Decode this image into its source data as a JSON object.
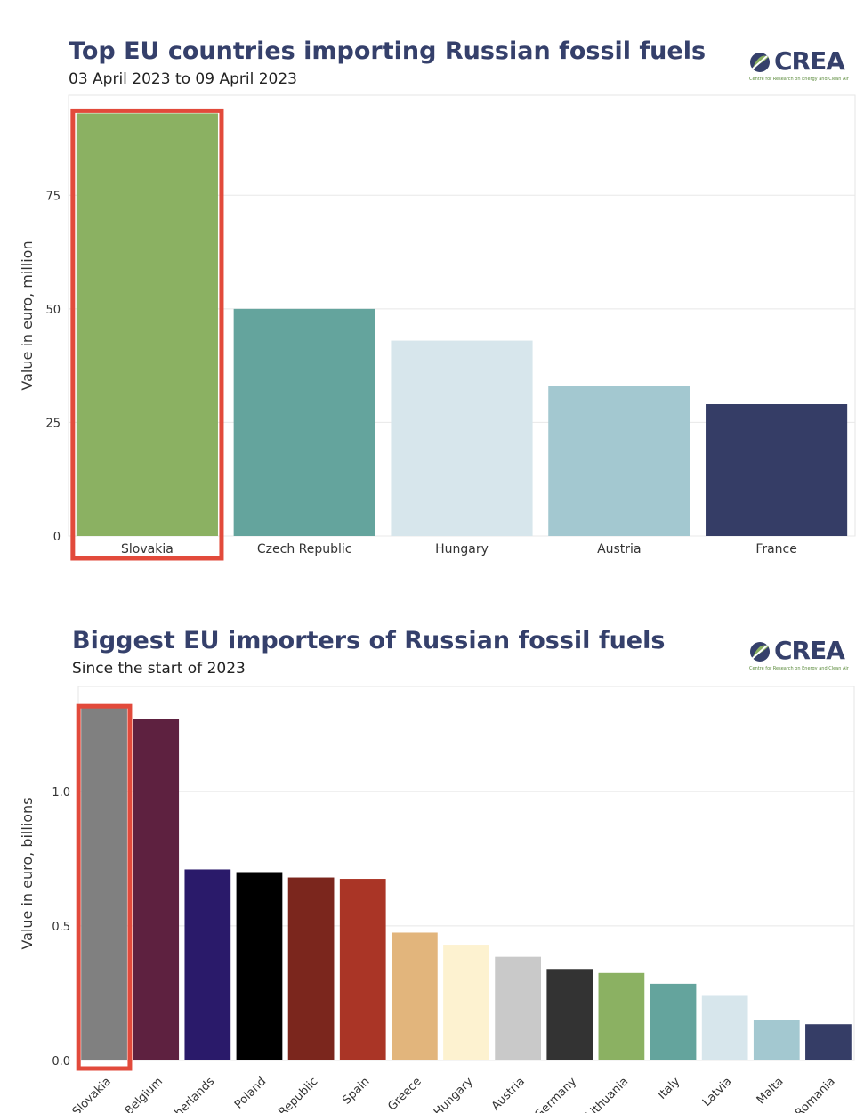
{
  "chart1": {
    "title": "Top EU countries importing Russian fossil fuels",
    "subtitle": "03 April 2023 to 09 April 2023",
    "logo": {
      "word": "CREA",
      "sub": "Centre for Research on Energy and Clean Air"
    },
    "highlight_color": "#e24a3b",
    "chart_data": {
      "type": "bar",
      "title": "Top EU countries importing Russian fossil fuels",
      "subtitle": "03 April 2023 to 09 April 2023",
      "xlabel": "",
      "ylabel": "Value in euro, million",
      "ylim": [
        0,
        97
      ],
      "yticks": [
        0,
        25,
        50,
        75
      ],
      "ytick_labels": [
        "0",
        "25",
        "50",
        "75"
      ],
      "categories": [
        "Slovakia",
        "Czech Republic",
        "Hungary",
        "Austria",
        "France"
      ],
      "values": [
        93,
        50,
        43,
        33,
        29
      ],
      "colors": [
        "#8bb162",
        "#64a49d",
        "#d7e6ec",
        "#a3c8d0",
        "#353d66"
      ],
      "highlighted": "Slovakia",
      "grid": true
    }
  },
  "chart2": {
    "title": "Biggest EU importers of Russian fossil fuels",
    "subtitle": "Since the start of 2023",
    "logo": {
      "word": "CREA",
      "sub": "Centre for Research on Energy and Clean Air"
    },
    "highlight_color": "#e24a3b",
    "chart_data": {
      "type": "bar",
      "title": "Biggest EU importers of Russian fossil fuels",
      "subtitle": "Since the start of 2023",
      "xlabel": "",
      "ylabel": "Value in euro, billions",
      "ylim": [
        0,
        1.39
      ],
      "yticks": [
        0,
        0.5,
        1.0
      ],
      "ytick_labels": [
        "0.0",
        "0.5",
        "1.0"
      ],
      "categories": [
        "Slovakia",
        "Belgium",
        "Netherlands",
        "Poland",
        "Czech Republic",
        "Spain",
        "Greece",
        "Hungary",
        "Austria",
        "Germany",
        "Lithuania",
        "Italy",
        "Latvia",
        "Malta",
        "Romania"
      ],
      "tick_labels": [
        "Slovakia",
        "Belgium",
        "therlands",
        "Poland",
        "Republic",
        "Spain",
        "Greece",
        "Hungary",
        "Austria",
        "Germany",
        "Lithuania",
        "Italy",
        "Latvia",
        "Malta",
        "Romania"
      ],
      "values": [
        1.31,
        1.27,
        0.71,
        0.7,
        0.68,
        0.675,
        0.475,
        0.43,
        0.385,
        0.34,
        0.325,
        0.285,
        0.24,
        0.15,
        0.135
      ],
      "colors": [
        "#808080",
        "#5e2140",
        "#2a1a6a",
        "#000000",
        "#7b261d",
        "#aa3526",
        "#e2b57c",
        "#fdf2d0",
        "#c9c9c9",
        "#333333",
        "#8bb162",
        "#64a49d",
        "#d7e6ec",
        "#a3c8d0",
        "#353d66"
      ],
      "highlighted": "Slovakia",
      "grid": true
    }
  }
}
